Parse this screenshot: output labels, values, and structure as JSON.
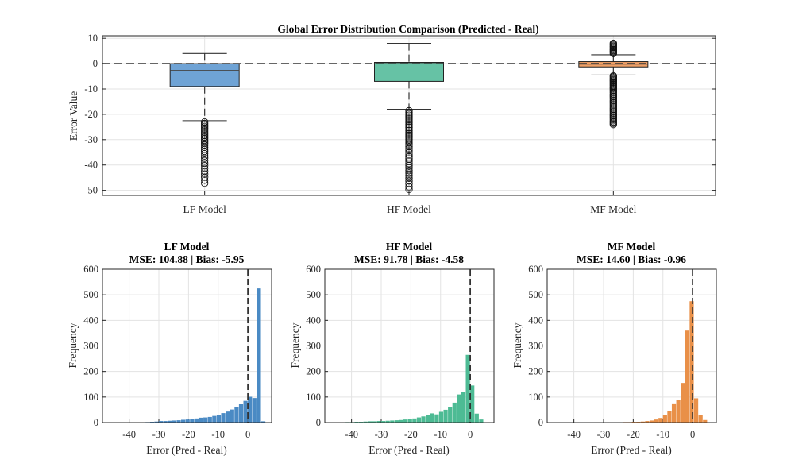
{
  "chart_data": [
    {
      "type": "boxplot",
      "title": "Global Error Distribution Comparison (Predicted - Real)",
      "xlabel": "",
      "ylabel": "Error Value",
      "ylim": [
        -52,
        11
      ],
      "yticks": [
        10,
        0,
        -10,
        -20,
        -30,
        -40,
        -50
      ],
      "grid": true,
      "reference_line": 0,
      "categories": [
        "LF Model",
        "HF Model",
        "MF Model"
      ],
      "boxes": [
        {
          "name": "LF Model",
          "color": "#6fa3d5",
          "q1": -9,
          "median": -2.7,
          "q3": 0,
          "whisker_low": -22.5,
          "whisker_high": 4,
          "outliers": [
            -23,
            -23.6,
            -24.2,
            -24.8,
            -25.4,
            -26,
            -26.6,
            -27.2,
            -27.8,
            -28.4,
            -29,
            -29.6,
            -30.2,
            -30.8,
            -31.5,
            -32.2,
            -33,
            -33.8,
            -34.6,
            -35.5,
            -36.4,
            -37.3,
            -38.3,
            -39.3,
            -40.3,
            -41.4,
            -42.5,
            -43.6,
            -44.8,
            -46,
            -47.2
          ]
        },
        {
          "name": "HF Model",
          "color": "#66c2a5",
          "q1": -7,
          "median": 0,
          "q3": 0.5,
          "whisker_low": -18,
          "whisker_high": 8,
          "outliers": [
            -18.6,
            -19.2,
            -19.8,
            -20.4,
            -21,
            -21.6,
            -22.2,
            -22.8,
            -23.4,
            -24,
            -24.6,
            -25.2,
            -25.8,
            -26.4,
            -27,
            -27.6,
            -28.2,
            -28.8,
            -29.4,
            -30,
            -30.6,
            -31.3,
            -32,
            -32.8,
            -33.6,
            -34.4,
            -35.2,
            -36,
            -36.8,
            -37.6,
            -38.5,
            -39.4,
            -40.3,
            -41.2,
            -42.2,
            -43.2,
            -44.2,
            -45.2,
            -46.3,
            -47.4,
            -48.6,
            -49.6
          ]
        },
        {
          "name": "MF Model",
          "color": "#f0a066",
          "q1": -1.3,
          "median": -0.2,
          "q3": 0.8,
          "whisker_low": -4.5,
          "whisker_high": 3.5,
          "outliers": [
            4,
            4.4,
            4.8,
            5.2,
            5.6,
            6,
            6.4,
            6.8,
            7.2,
            7.6,
            8,
            -4.8,
            -5.2,
            -5.6,
            -6,
            -6.4,
            -6.8,
            -7.2,
            -7.6,
            -8,
            -8.4,
            -8.8,
            -9.2,
            -9.6,
            -10,
            -10.5,
            -11,
            -11.5,
            -12,
            -12.5,
            -13,
            -13.5,
            -14,
            -14.5,
            -15,
            -15.5,
            -16,
            -16.5,
            -17,
            -17.5,
            -18,
            -18.5,
            -19,
            -19.5,
            -20,
            -20.5,
            -21,
            -21.5,
            -22,
            -22.5,
            -23,
            -23.5,
            -24
          ]
        }
      ]
    },
    {
      "type": "histogram",
      "title": "LF Model",
      "subtitle": "MSE: 104.88 | Bias: -5.95",
      "xlabel": "Error (Pred - Real)",
      "ylabel": "Frequency",
      "xlim": [
        -49,
        8
      ],
      "ylim": [
        0,
        600
      ],
      "xticks": [
        -40,
        -30,
        -20,
        -10,
        0
      ],
      "yticks": [
        0,
        100,
        200,
        300,
        400,
        500,
        600
      ],
      "grid": true,
      "reference_line": 0,
      "color": "#4a8ac4",
      "bin_start": -36,
      "bin_width": 1.5,
      "counts": [
        1,
        2,
        3,
        4,
        6,
        6,
        7,
        8,
        9,
        11,
        12,
        15,
        16,
        19,
        20,
        22,
        26,
        31,
        37,
        43,
        51,
        61,
        73,
        85,
        101,
        96,
        525,
        5
      ]
    },
    {
      "type": "histogram",
      "title": "HF Model",
      "subtitle": "MSE: 91.78 | Bias: -4.58",
      "xlabel": "Error (Pred - Real)",
      "ylabel": "Frequency",
      "xlim": [
        -49,
        8
      ],
      "ylim": [
        0,
        600
      ],
      "xticks": [
        -40,
        -30,
        -20,
        -10,
        0
      ],
      "yticks": [
        0,
        100,
        200,
        300,
        400,
        500,
        600
      ],
      "grid": true,
      "reference_line": 0,
      "color": "#4dbb94",
      "bin_start": -42,
      "bin_width": 1.5,
      "counts": [
        2,
        2,
        3,
        3,
        4,
        5,
        5,
        6,
        6,
        7,
        8,
        9,
        10,
        12,
        14,
        16,
        20,
        24,
        30,
        36,
        32,
        42,
        50,
        62,
        78,
        110,
        120,
        265,
        145,
        35,
        12
      ]
    },
    {
      "type": "histogram",
      "title": "MF Model",
      "subtitle": "MSE: 14.60 | Bias: -0.96",
      "xlabel": "Error (Pred - Real)",
      "ylabel": "Frequency",
      "xlim": [
        -49,
        8
      ],
      "ylim": [
        0,
        600
      ],
      "xticks": [
        -40,
        -30,
        -20,
        -10,
        0
      ],
      "yticks": [
        0,
        100,
        200,
        300,
        400,
        500,
        600
      ],
      "grid": true,
      "reference_line": 0,
      "color": "#e99048",
      "bin_start": -25,
      "bin_width": 1.5,
      "counts": [
        1,
        2,
        2,
        3,
        3,
        4,
        6,
        8,
        12,
        18,
        28,
        45,
        75,
        90,
        155,
        360,
        475,
        95,
        30,
        10
      ]
    }
  ]
}
